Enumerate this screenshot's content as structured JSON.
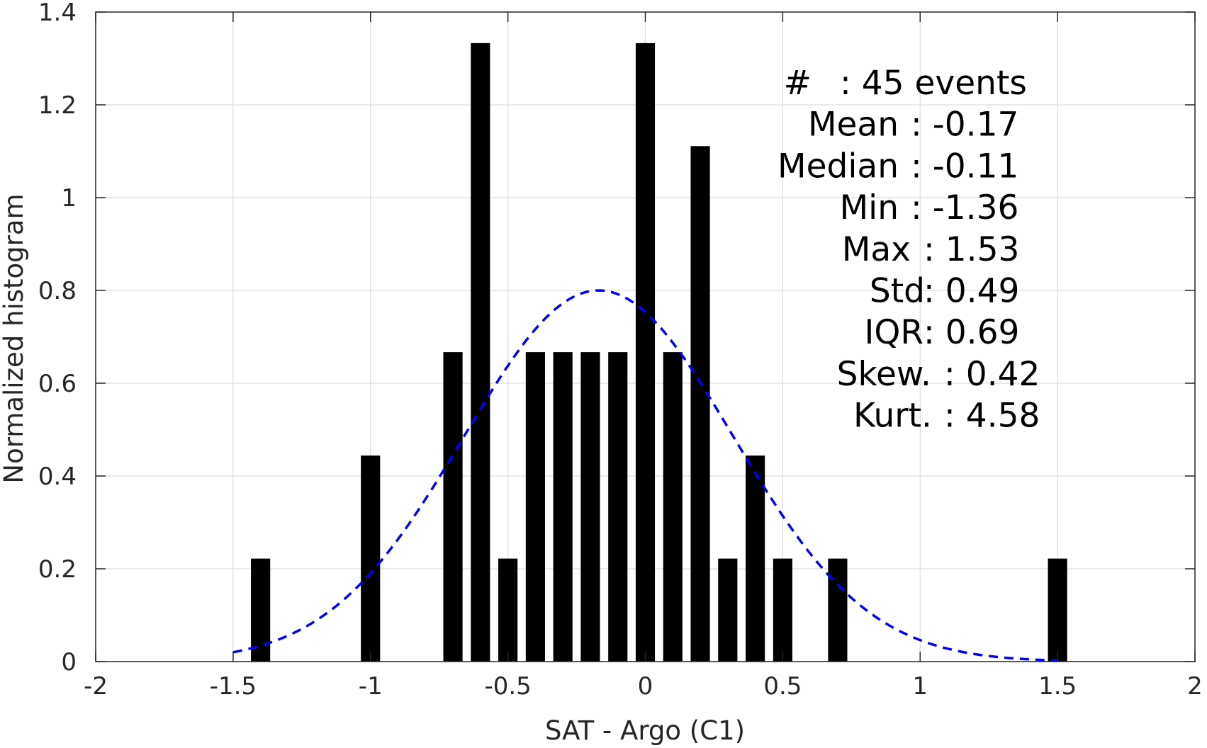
{
  "chart_data": {
    "type": "bar",
    "xlabel": "SAT - Argo (C1)",
    "ylabel": "Normalized histogram",
    "xlim": [
      -2,
      2
    ],
    "ylim": [
      0,
      1.4
    ],
    "xticks": [
      -2,
      -1.5,
      -1,
      -0.5,
      0,
      0.5,
      1,
      1.5,
      2
    ],
    "xtick_labels": [
      "-2",
      "-1.5",
      "-1",
      "-0.5",
      "0",
      "0.5",
      "1",
      "1.5",
      "2"
    ],
    "yticks": [
      0,
      0.2,
      0.4,
      0.6,
      0.8,
      1,
      1.2,
      1.4
    ],
    "ytick_labels": [
      "0",
      "0.2",
      "0.4",
      "0.6",
      "0.8",
      "1",
      "1.2",
      "1.4"
    ],
    "grid": true,
    "bar_color": "#000000",
    "bar_width": 0.07,
    "bars": [
      {
        "x": -1.4,
        "y": 0.222
      },
      {
        "x": -1.0,
        "y": 0.444
      },
      {
        "x": -0.7,
        "y": 0.667
      },
      {
        "x": -0.6,
        "y": 1.333
      },
      {
        "x": -0.5,
        "y": 0.222
      },
      {
        "x": -0.4,
        "y": 0.667
      },
      {
        "x": -0.3,
        "y": 0.667
      },
      {
        "x": -0.2,
        "y": 0.667
      },
      {
        "x": -0.1,
        "y": 0.667
      },
      {
        "x": 0.0,
        "y": 1.333
      },
      {
        "x": 0.1,
        "y": 0.667
      },
      {
        "x": 0.2,
        "y": 1.111
      },
      {
        "x": 0.3,
        "y": 0.222
      },
      {
        "x": 0.4,
        "y": 0.444
      },
      {
        "x": 0.5,
        "y": 0.222
      },
      {
        "x": 0.7,
        "y": 0.222
      },
      {
        "x": 1.5,
        "y": 0.222
      }
    ],
    "fit_curve": {
      "style": "dashed",
      "color": "#0000ff",
      "mean": -0.17,
      "std": 0.49,
      "peak": 0.8,
      "x_range": [
        -1.5,
        1.5
      ]
    },
    "stats_lines": [
      {
        "name": "#",
        "value": ": 45 events"
      },
      {
        "name": "Mean",
        "value": ": -0.17"
      },
      {
        "name": "Median",
        "value": ": -0.11"
      },
      {
        "name": "Min",
        "value": ": -1.36"
      },
      {
        "name": "Max",
        "value": ": 1.53"
      },
      {
        "name": "Std",
        "value": ": 0.49"
      },
      {
        "name": "IQR",
        "value": ": 0.69"
      },
      {
        "name": "Skew.",
        "value": ": 0.42"
      },
      {
        "name": "Kurt.",
        "value": ": 4.58"
      }
    ]
  }
}
